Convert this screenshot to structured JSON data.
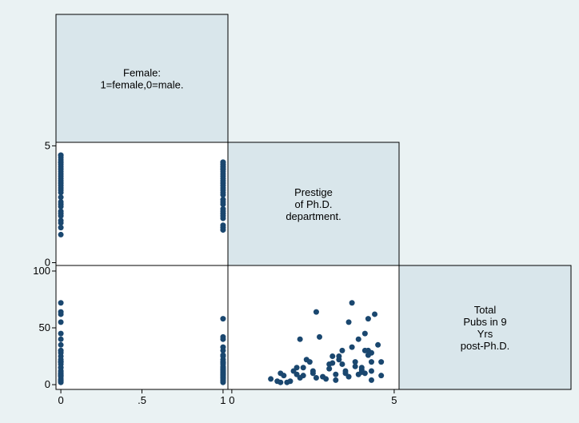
{
  "chart_data": {
    "type": "matrix",
    "color": "#1a476f",
    "variables": [
      {
        "label": [
          "Female:",
          "1=female,0=male."
        ],
        "lim": [
          -0.03,
          1.03
        ],
        "ticks": [
          0,
          {
            "value": 0.5,
            "label": ".5"
          },
          1
        ],
        "values": [
          0,
          0,
          0,
          0,
          0,
          0,
          0,
          0,
          0,
          0,
          0,
          0,
          0,
          0,
          0,
          0,
          0,
          0,
          0,
          0,
          0,
          0,
          0,
          0,
          0,
          0,
          0,
          0,
          0,
          0,
          1,
          1,
          1,
          1,
          1,
          1,
          1,
          1,
          1,
          1,
          1,
          1,
          1,
          1,
          1,
          1,
          1,
          1,
          1,
          1,
          1,
          1,
          1,
          1,
          1,
          1,
          1,
          1,
          1,
          1
        ]
      },
      {
        "label": [
          "Prestige",
          "of Ph.D.",
          "department."
        ],
        "lim": [
          -0.12,
          5.15
        ],
        "ticks": [
          0,
          5
        ],
        "values": [
          1.2,
          1.5,
          1.8,
          2.0,
          2.2,
          2.4,
          2.5,
          2.6,
          2.8,
          3.0,
          3.1,
          3.2,
          3.4,
          3.5,
          3.6,
          3.7,
          3.8,
          3.9,
          4.0,
          4.1,
          4.2,
          4.3,
          4.4,
          4.5,
          4.6,
          4.6,
          2.1,
          3.3,
          4.3,
          1.7,
          1.4,
          1.6,
          1.9,
          2.1,
          2.3,
          2.5,
          2.7,
          2.9,
          3.0,
          3.2,
          3.3,
          3.4,
          3.6,
          3.7,
          3.8,
          4.0,
          4.1,
          4.2,
          4.3,
          4.3,
          4.2,
          2.2,
          2.6,
          3.5,
          3.9,
          4.1,
          1.5,
          2.0,
          3.1,
          4.0
        ]
      },
      {
        "label": [
          "Total",
          "Pubs in 9",
          "Yrs",
          "post-Ph.D."
        ],
        "lim": [
          -4.2,
          104.9
        ],
        "ticks": [
          0,
          50,
          100
        ],
        "values": [
          5,
          10,
          3,
          15,
          8,
          20,
          12,
          64,
          7,
          18,
          25,
          4,
          30,
          10,
          55,
          72,
          20,
          9,
          15,
          45,
          30,
          12,
          62,
          35,
          20,
          8,
          40,
          22,
          28,
          2,
          3,
          8,
          12,
          6,
          22,
          10,
          42,
          5,
          14,
          9,
          25,
          18,
          7,
          33,
          16,
          11,
          30,
          58,
          20,
          4,
          26,
          15,
          6,
          12,
          40,
          10,
          2,
          9,
          19,
          13
        ]
      }
    ]
  }
}
